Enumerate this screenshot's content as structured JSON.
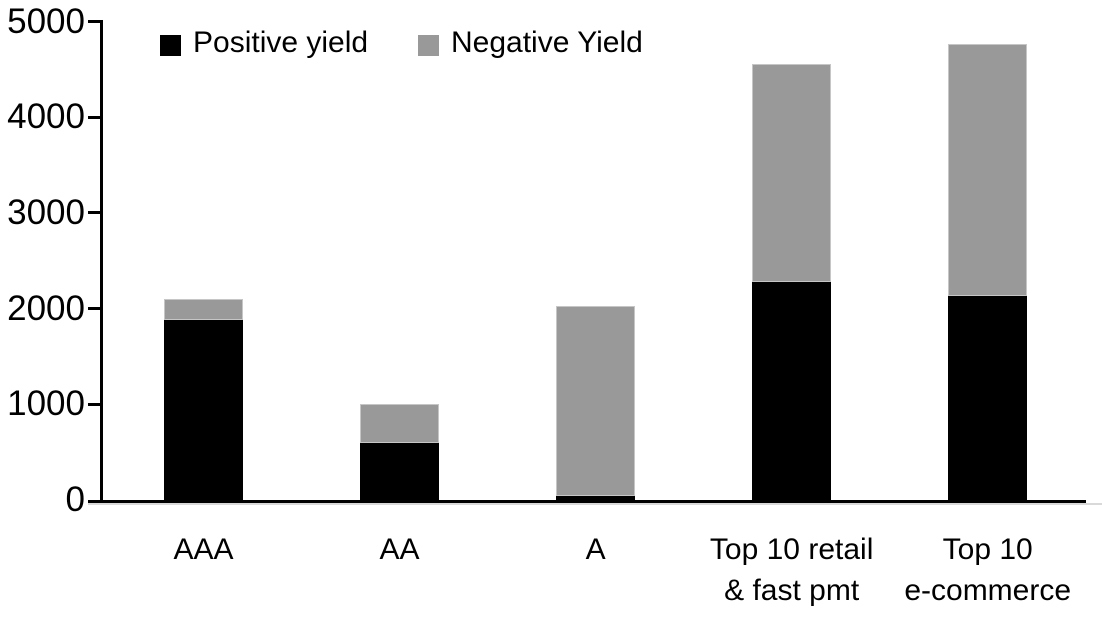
{
  "chart_data": {
    "type": "bar",
    "stacked": true,
    "title": "",
    "xlabel": "",
    "ylabel": "",
    "ylim": [
      0,
      5000
    ],
    "y_ticks": [
      0,
      1000,
      2000,
      3000,
      4000,
      5000
    ],
    "grid": false,
    "legend_position": "top",
    "background_color": "#ffffff",
    "axis_color": "#000000",
    "categories": [
      "AAA",
      "AA",
      "A",
      "Top 10 retail\n& fast pmt",
      "Top 10\ne-commerce"
    ],
    "series": [
      {
        "name": "Positive yield",
        "color": "#000000",
        "values": [
          1880,
          600,
          40,
          2280,
          2130
        ]
      },
      {
        "name": "Negative Yield",
        "color": "#999999",
        "values": [
          220,
          400,
          1990,
          2280,
          2630
        ]
      }
    ],
    "totals": [
      2100,
      1000,
      2030,
      4560,
      4760
    ]
  }
}
